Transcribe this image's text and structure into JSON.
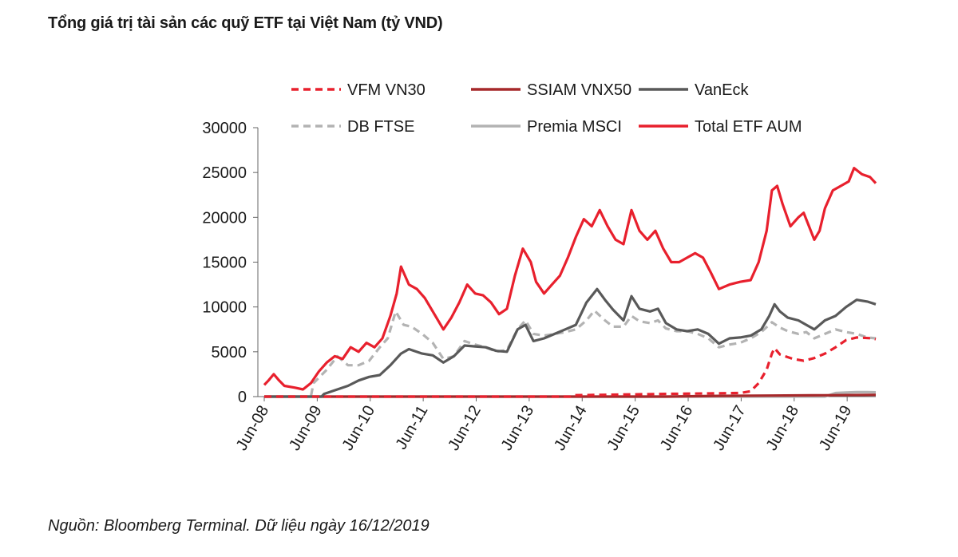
{
  "title": "Tổng giá trị tài sản các quỹ ETF tại Việt Nam (tỷ VND)",
  "source": "Nguồn: Bloomberg Terminal. Dữ liệu ngày 16/12/2019",
  "chart_data": {
    "type": "line",
    "title": "Tổng giá trị tài sản các quỹ ETF tại Việt Nam (tỷ VND)",
    "xlabel": "",
    "ylabel": "",
    "ylim": [
      0,
      30000
    ],
    "yticks": [
      0,
      5000,
      10000,
      15000,
      20000,
      25000,
      30000
    ],
    "xlim": [
      2008.42,
      2019.96
    ],
    "xtick_labels": [
      "Jun-08",
      "Jun-09",
      "Jun-10",
      "Jun-11",
      "Jun-12",
      "Jun-13",
      "Jun-14",
      "Jun-15",
      "Jun-16",
      "Jun-17",
      "Jun-18",
      "Jun-19"
    ],
    "xtick_positions": [
      2008.42,
      2009.42,
      2010.42,
      2011.42,
      2012.42,
      2013.42,
      2014.42,
      2015.42,
      2016.42,
      2017.42,
      2018.42,
      2019.42
    ],
    "legend_position": "top",
    "series": [
      {
        "name": "VFM VN30",
        "color": "#e8202d",
        "dash": "dashed",
        "points": [
          [
            2008.42,
            0
          ],
          [
            2014.2,
            0
          ],
          [
            2014.25,
            150
          ],
          [
            2016.0,
            300
          ],
          [
            2017.4,
            400
          ],
          [
            2017.6,
            600
          ],
          [
            2017.75,
            1500
          ],
          [
            2017.9,
            3000
          ],
          [
            2018.0,
            4800
          ],
          [
            2018.05,
            5400
          ],
          [
            2018.15,
            4700
          ],
          [
            2018.4,
            4200
          ],
          [
            2018.6,
            4000
          ],
          [
            2018.8,
            4300
          ],
          [
            2019.0,
            4800
          ],
          [
            2019.2,
            5500
          ],
          [
            2019.4,
            6300
          ],
          [
            2019.6,
            6600
          ],
          [
            2019.9,
            6500
          ],
          [
            2019.96,
            6400
          ]
        ]
      },
      {
        "name": "SSIAM VNX50",
        "color": "#a6282a",
        "dash": "solid",
        "points": [
          [
            2008.42,
            0
          ],
          [
            2016.0,
            0
          ],
          [
            2017.0,
            80
          ],
          [
            2018.0,
            120
          ],
          [
            2019.0,
            150
          ],
          [
            2019.96,
            200
          ]
        ]
      },
      {
        "name": "VanEck",
        "color": "#595959",
        "dash": "solid",
        "points": [
          [
            2008.42,
            0
          ],
          [
            2009.5,
            0
          ],
          [
            2009.55,
            300
          ],
          [
            2009.8,
            800
          ],
          [
            2010.0,
            1200
          ],
          [
            2010.2,
            1800
          ],
          [
            2010.4,
            2200
          ],
          [
            2010.6,
            2400
          ],
          [
            2010.8,
            3500
          ],
          [
            2011.0,
            4800
          ],
          [
            2011.15,
            5300
          ],
          [
            2011.4,
            4800
          ],
          [
            2011.6,
            4600
          ],
          [
            2011.8,
            3800
          ],
          [
            2012.0,
            4500
          ],
          [
            2012.2,
            5700
          ],
          [
            2012.4,
            5600
          ],
          [
            2012.6,
            5500
          ],
          [
            2012.8,
            5100
          ],
          [
            2013.0,
            5000
          ],
          [
            2013.2,
            7500
          ],
          [
            2013.35,
            8000
          ],
          [
            2013.5,
            6200
          ],
          [
            2013.7,
            6500
          ],
          [
            2013.9,
            7000
          ],
          [
            2014.1,
            7500
          ],
          [
            2014.3,
            8000
          ],
          [
            2014.5,
            10500
          ],
          [
            2014.7,
            12000
          ],
          [
            2014.85,
            10800
          ],
          [
            2015.0,
            9700
          ],
          [
            2015.2,
            8500
          ],
          [
            2015.35,
            11200
          ],
          [
            2015.5,
            9800
          ],
          [
            2015.7,
            9500
          ],
          [
            2015.85,
            9800
          ],
          [
            2016.0,
            8200
          ],
          [
            2016.2,
            7500
          ],
          [
            2016.4,
            7300
          ],
          [
            2016.6,
            7500
          ],
          [
            2016.8,
            7000
          ],
          [
            2017.0,
            5900
          ],
          [
            2017.2,
            6500
          ],
          [
            2017.4,
            6600
          ],
          [
            2017.6,
            6800
          ],
          [
            2017.8,
            7500
          ],
          [
            2017.95,
            9000
          ],
          [
            2018.05,
            10300
          ],
          [
            2018.15,
            9500
          ],
          [
            2018.3,
            8800
          ],
          [
            2018.5,
            8500
          ],
          [
            2018.65,
            8000
          ],
          [
            2018.8,
            7500
          ],
          [
            2019.0,
            8500
          ],
          [
            2019.2,
            9000
          ],
          [
            2019.4,
            10000
          ],
          [
            2019.6,
            10800
          ],
          [
            2019.8,
            10600
          ],
          [
            2019.96,
            10300
          ]
        ]
      },
      {
        "name": "DB FTSE",
        "color": "#b3b3b3",
        "dash": "dashed",
        "points": [
          [
            2008.42,
            0
          ],
          [
            2009.3,
            0
          ],
          [
            2009.35,
            1500
          ],
          [
            2009.6,
            3000
          ],
          [
            2009.8,
            4500
          ],
          [
            2010.0,
            3500
          ],
          [
            2010.2,
            3500
          ],
          [
            2010.4,
            4000
          ],
          [
            2010.6,
            5500
          ],
          [
            2010.75,
            6500
          ],
          [
            2010.9,
            9500
          ],
          [
            2011.05,
            8000
          ],
          [
            2011.2,
            7800
          ],
          [
            2011.4,
            7000
          ],
          [
            2011.6,
            6000
          ],
          [
            2011.8,
            4200
          ],
          [
            2012.0,
            4500
          ],
          [
            2012.2,
            6200
          ],
          [
            2012.4,
            5800
          ],
          [
            2012.6,
            5500
          ],
          [
            2012.8,
            5000
          ],
          [
            2013.0,
            5200
          ],
          [
            2013.2,
            7500
          ],
          [
            2013.35,
            8500
          ],
          [
            2013.5,
            7000
          ],
          [
            2013.7,
            6800
          ],
          [
            2013.9,
            7000
          ],
          [
            2014.1,
            7200
          ],
          [
            2014.3,
            7500
          ],
          [
            2014.5,
            8500
          ],
          [
            2014.65,
            9600
          ],
          [
            2014.85,
            8500
          ],
          [
            2015.0,
            7800
          ],
          [
            2015.2,
            7800
          ],
          [
            2015.35,
            9000
          ],
          [
            2015.5,
            8400
          ],
          [
            2015.7,
            8200
          ],
          [
            2015.85,
            8500
          ],
          [
            2016.0,
            7600
          ],
          [
            2016.2,
            7300
          ],
          [
            2016.4,
            7300
          ],
          [
            2016.6,
            7000
          ],
          [
            2016.8,
            6500
          ],
          [
            2017.0,
            5500
          ],
          [
            2017.2,
            5800
          ],
          [
            2017.4,
            6000
          ],
          [
            2017.6,
            6500
          ],
          [
            2017.8,
            7200
          ],
          [
            2018.0,
            8300
          ],
          [
            2018.15,
            7700
          ],
          [
            2018.3,
            7300
          ],
          [
            2018.5,
            7000
          ],
          [
            2018.65,
            7200
          ],
          [
            2018.8,
            6500
          ],
          [
            2019.0,
            7000
          ],
          [
            2019.2,
            7500
          ],
          [
            2019.4,
            7200
          ],
          [
            2019.6,
            7000
          ],
          [
            2019.8,
            6600
          ],
          [
            2019.96,
            6500
          ]
        ]
      },
      {
        "name": "Premia MSCI",
        "color": "#b3b3b3",
        "dash": "solid",
        "points": [
          [
            2008.42,
            0
          ],
          [
            2019.0,
            0
          ],
          [
            2019.1,
            200
          ],
          [
            2019.2,
            400
          ],
          [
            2019.4,
            450
          ],
          [
            2019.6,
            500
          ],
          [
            2019.8,
            500
          ],
          [
            2019.96,
            480
          ]
        ]
      },
      {
        "name": "Total ETF AUM",
        "color": "#e8202d",
        "dash": "solid",
        "points": [
          [
            2008.42,
            1300
          ],
          [
            2008.5,
            1800
          ],
          [
            2008.6,
            2500
          ],
          [
            2008.7,
            1800
          ],
          [
            2008.8,
            1200
          ],
          [
            2009.0,
            1000
          ],
          [
            2009.15,
            800
          ],
          [
            2009.3,
            1500
          ],
          [
            2009.45,
            2800
          ],
          [
            2009.6,
            3800
          ],
          [
            2009.75,
            4500
          ],
          [
            2009.9,
            4200
          ],
          [
            2010.05,
            5500
          ],
          [
            2010.2,
            5000
          ],
          [
            2010.35,
            6000
          ],
          [
            2010.5,
            5500
          ],
          [
            2010.65,
            6500
          ],
          [
            2010.8,
            9000
          ],
          [
            2010.92,
            11500
          ],
          [
            2011.0,
            14500
          ],
          [
            2011.15,
            12500
          ],
          [
            2011.3,
            12000
          ],
          [
            2011.45,
            11000
          ],
          [
            2011.6,
            9500
          ],
          [
            2011.8,
            7500
          ],
          [
            2011.95,
            8800
          ],
          [
            2012.1,
            10500
          ],
          [
            2012.25,
            12500
          ],
          [
            2012.4,
            11500
          ],
          [
            2012.55,
            11300
          ],
          [
            2012.7,
            10500
          ],
          [
            2012.85,
            9200
          ],
          [
            2013.0,
            9800
          ],
          [
            2013.15,
            13500
          ],
          [
            2013.3,
            16500
          ],
          [
            2013.45,
            15000
          ],
          [
            2013.55,
            12800
          ],
          [
            2013.7,
            11500
          ],
          [
            2013.85,
            12500
          ],
          [
            2014.0,
            13500
          ],
          [
            2014.15,
            15500
          ],
          [
            2014.3,
            17800
          ],
          [
            2014.45,
            19800
          ],
          [
            2014.6,
            19000
          ],
          [
            2014.75,
            20800
          ],
          [
            2014.9,
            19000
          ],
          [
            2015.05,
            17500
          ],
          [
            2015.2,
            17000
          ],
          [
            2015.35,
            20800
          ],
          [
            2015.5,
            18500
          ],
          [
            2015.65,
            17500
          ],
          [
            2015.8,
            18500
          ],
          [
            2015.95,
            16500
          ],
          [
            2016.1,
            15000
          ],
          [
            2016.25,
            15000
          ],
          [
            2016.4,
            15500
          ],
          [
            2016.55,
            16000
          ],
          [
            2016.7,
            15500
          ],
          [
            2016.85,
            13800
          ],
          [
            2017.0,
            12000
          ],
          [
            2017.2,
            12500
          ],
          [
            2017.4,
            12800
          ],
          [
            2017.6,
            13000
          ],
          [
            2017.75,
            15000
          ],
          [
            2017.9,
            18500
          ],
          [
            2018.0,
            23000
          ],
          [
            2018.1,
            23500
          ],
          [
            2018.2,
            21500
          ],
          [
            2018.35,
            19000
          ],
          [
            2018.5,
            20000
          ],
          [
            2018.6,
            20500
          ],
          [
            2018.7,
            19000
          ],
          [
            2018.8,
            17500
          ],
          [
            2018.9,
            18500
          ],
          [
            2019.0,
            21000
          ],
          [
            2019.15,
            23000
          ],
          [
            2019.3,
            23500
          ],
          [
            2019.45,
            24000
          ],
          [
            2019.55,
            25500
          ],
          [
            2019.7,
            24800
          ],
          [
            2019.85,
            24500
          ],
          [
            2019.96,
            23800
          ]
        ]
      }
    ]
  }
}
